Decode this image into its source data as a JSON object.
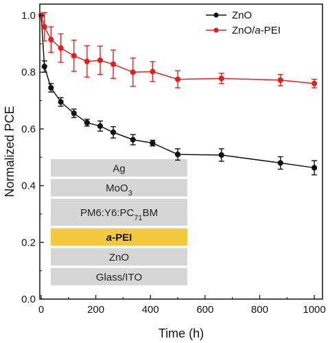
{
  "chart_data": {
    "type": "line",
    "xlabel": "Time (h)",
    "ylabel": "Normalized PCE",
    "xlim": [
      -5,
      1030
    ],
    "ylim": [
      0.0,
      1.04
    ],
    "xticks": [
      "0",
      "200",
      "400",
      "600",
      "800",
      "1000"
    ],
    "yticks": [
      "0.0",
      "0.2",
      "0.4",
      "0.6",
      "0.8",
      "1.0"
    ],
    "legend_position": "top-right",
    "series": [
      {
        "name": "ZnO",
        "name_parts": [
          "ZnO"
        ],
        "color": "#111111",
        "x": [
          0,
          12,
          36,
          72,
          120,
          168,
          216,
          264,
          336,
          408,
          500,
          660,
          876,
          1000
        ],
        "y": [
          1.0,
          0.82,
          0.745,
          0.695,
          0.655,
          0.622,
          0.61,
          0.588,
          0.562,
          0.55,
          0.51,
          0.508,
          0.48,
          0.463
        ],
        "err": [
          0.0,
          0.02,
          0.015,
          0.015,
          0.015,
          0.012,
          0.018,
          0.02,
          0.018,
          0.01,
          0.02,
          0.022,
          0.022,
          0.025
        ]
      },
      {
        "name": "ZnO/a-PEI",
        "name_parts": [
          "ZnO/",
          "a",
          "-PEI"
        ],
        "color": "#e02020",
        "x": [
          0,
          12,
          36,
          72,
          120,
          168,
          216,
          264,
          336,
          408,
          500,
          660,
          876,
          1000
        ],
        "y": [
          1.0,
          0.96,
          0.915,
          0.885,
          0.858,
          0.838,
          0.842,
          0.828,
          0.8,
          0.802,
          0.775,
          0.778,
          0.772,
          0.76
        ],
        "err": [
          0.0,
          0.05,
          0.045,
          0.05,
          0.055,
          0.055,
          0.05,
          0.05,
          0.05,
          0.035,
          0.03,
          0.018,
          0.02,
          0.015
        ]
      }
    ]
  },
  "device_stack": {
    "layers": [
      {
        "parts": [
          "Ag"
        ],
        "style": "plain"
      },
      {
        "parts": [
          "MoO",
          "3",
          ""
        ],
        "style": "plain"
      },
      {
        "parts": [
          "PM6:Y6:PC",
          "71",
          "BM"
        ],
        "style": "plain"
      },
      {
        "parts": [
          "a",
          "-PEI"
        ],
        "style": "highlight"
      },
      {
        "parts": [
          "ZnO"
        ],
        "style": "plain"
      },
      {
        "parts": [
          "Glass/ITO"
        ],
        "style": "plain"
      }
    ],
    "colors": {
      "plain": "#d6d6d6",
      "highlight": "#f5c842"
    }
  }
}
